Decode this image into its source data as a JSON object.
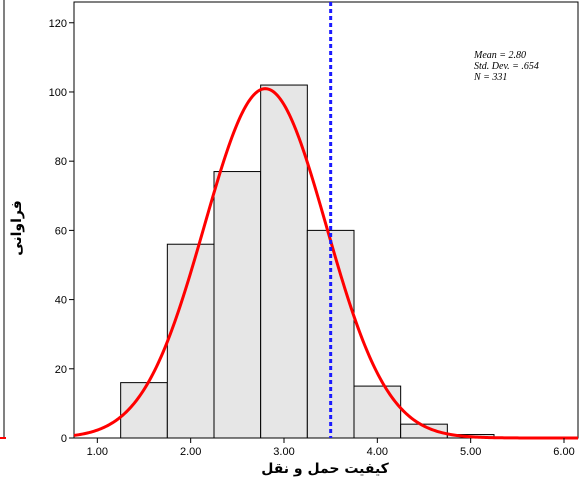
{
  "chart_data": {
    "type": "bar",
    "subtype": "histogram",
    "bins": [
      {
        "from": 1.25,
        "to": 1.75,
        "count": 16
      },
      {
        "from": 1.75,
        "to": 2.25,
        "count": 56
      },
      {
        "from": 2.25,
        "to": 2.75,
        "count": 77
      },
      {
        "from": 2.75,
        "to": 3.25,
        "count": 102
      },
      {
        "from": 3.25,
        "to": 3.75,
        "count": 60
      },
      {
        "from": 3.75,
        "to": 4.25,
        "count": 15
      },
      {
        "from": 4.25,
        "to": 4.75,
        "count": 4
      },
      {
        "from": 4.75,
        "to": 5.25,
        "count": 1
      }
    ],
    "normal_curve": {
      "mean": 2.8,
      "std": 0.654,
      "n": 331,
      "bin_width": 0.5
    },
    "reference_line_x": 3.5,
    "xlabel": "کیفیت حمل و نقل",
    "ylabel": "فراوانی",
    "xlim": [
      0.75,
      6.15
    ],
    "ylim": [
      0,
      126
    ],
    "x_ticks": [
      "1.00",
      "2.00",
      "3.00",
      "4.00",
      "5.00",
      "6.00"
    ],
    "x_tick_values": [
      1,
      2,
      3,
      4,
      5,
      6
    ],
    "y_ticks": [
      "0",
      "20",
      "40",
      "60",
      "80",
      "100",
      "120"
    ],
    "y_tick_values": [
      0,
      20,
      40,
      60,
      80,
      100,
      120
    ],
    "stats": [
      "Mean = 2.80",
      "Std. Dev. = .654",
      "N = 331"
    ],
    "grid": false,
    "legend": "none",
    "colors": {
      "bar_fill": "#e6e6e6",
      "bar_stroke": "#000000",
      "curve": "#ff0000",
      "reference_line": "#1a1aff"
    }
  }
}
